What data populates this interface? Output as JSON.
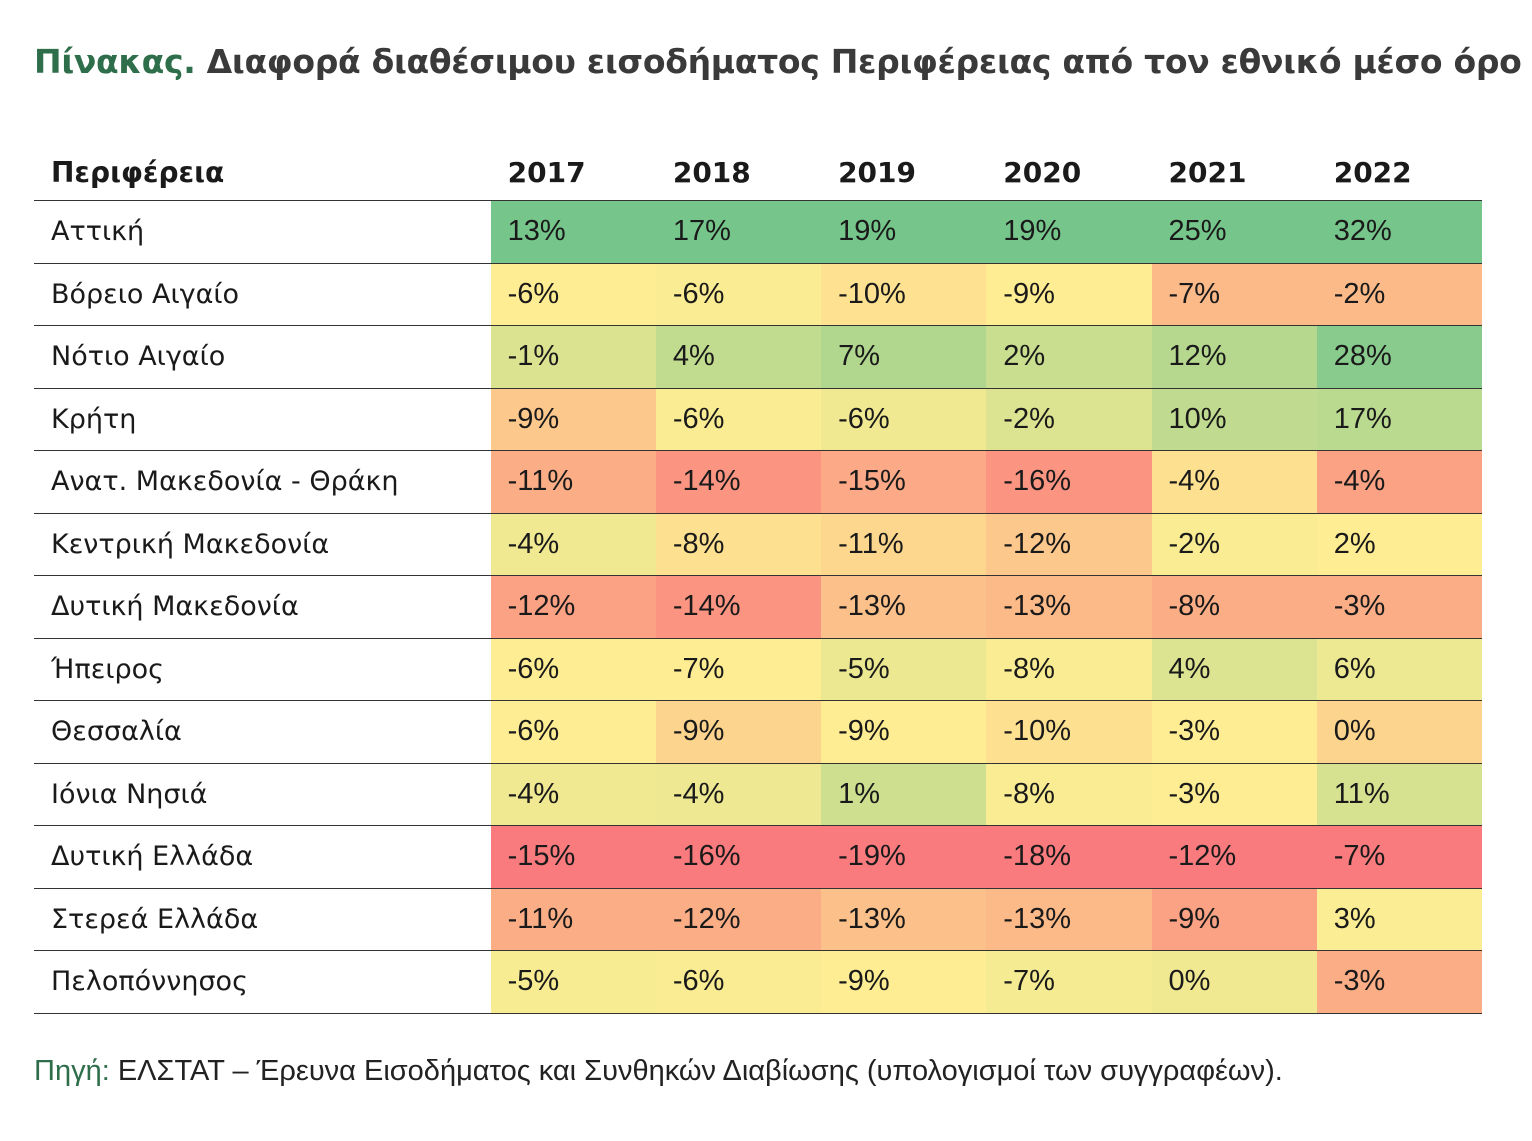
{
  "title": {
    "lead": "Πίνακας.",
    "text": " Διαφορά διαθέσιμου εισοδήματος Περιφέρειας από τον εθνικό μέσο όρο"
  },
  "colors": {
    "accent": "#2f6e4b",
    "low": "#f8696b",
    "mid": "#ffeb84",
    "high": "#63be7b"
  },
  "table": {
    "header_region": "Περιφέρεια",
    "years": [
      "2017",
      "2018",
      "2019",
      "2020",
      "2021",
      "2022"
    ],
    "rows": [
      {
        "region": "Αττική",
        "values": [
          13,
          17,
          19,
          19,
          25,
          32
        ],
        "labels": [
          "13%",
          "17%",
          "19%",
          "19%",
          "25%",
          "32%"
        ]
      },
      {
        "region": "Βόρειο Αιγαίο",
        "values": [
          -6,
          -6,
          -10,
          -9,
          -7,
          -2
        ],
        "labels": [
          "-6%",
          "-6%",
          "-10%",
          "-9%",
          "-7%",
          "-2%"
        ]
      },
      {
        "region": "Νότιο Αιγαίο",
        "values": [
          -1,
          4,
          7,
          2,
          12,
          28
        ],
        "labels": [
          "-1%",
          "4%",
          "7%",
          "2%",
          "12%",
          "28%"
        ]
      },
      {
        "region": "Κρήτη",
        "values": [
          -9,
          -6,
          -6,
          -2,
          10,
          17
        ],
        "labels": [
          "-9%",
          "-6%",
          "-6%",
          "-2%",
          "10%",
          "17%"
        ]
      },
      {
        "region": "Ανατ. Μακεδονία - Θράκη",
        "values": [
          -11,
          -14,
          -15,
          -16,
          -4,
          -4
        ],
        "labels": [
          "-11%",
          "-14%",
          "-15%",
          "-16%",
          "-4%",
          "-4%"
        ]
      },
      {
        "region": "Κεντρική Μακεδονία",
        "values": [
          -4,
          -8,
          -11,
          -12,
          -2,
          2
        ],
        "labels": [
          "-4%",
          "-8%",
          "-11%",
          "-12%",
          "-2%",
          "2%"
        ]
      },
      {
        "region": "Δυτική Μακεδονία",
        "values": [
          -12,
          -14,
          -13,
          -13,
          -8,
          -3
        ],
        "labels": [
          "-12%",
          "-14%",
          "-13%",
          "-13%",
          "-8%",
          "-3%"
        ]
      },
      {
        "region": "Ήπειρος",
        "values": [
          -6,
          -7,
          -5,
          -8,
          4,
          6
        ],
        "labels": [
          "-6%",
          "-7%",
          "-5%",
          "-8%",
          "4%",
          "6%"
        ]
      },
      {
        "region": "Θεσσαλία",
        "values": [
          -6,
          -9,
          -9,
          -10,
          -3,
          0
        ],
        "labels": [
          "-6%",
          "-9%",
          "-9%",
          "-10%",
          "-3%",
          "0%"
        ]
      },
      {
        "region": "Ιόνια Νησιά",
        "values": [
          -4,
          -4,
          1,
          -8,
          -3,
          11
        ],
        "labels": [
          "-4%",
          "-4%",
          "1%",
          "-8%",
          "-3%",
          "11%"
        ]
      },
      {
        "region": "Δυτική Ελλάδα",
        "values": [
          -15,
          -16,
          -19,
          -18,
          -12,
          -7
        ],
        "labels": [
          "-15%",
          "-16%",
          "-19%",
          "-18%",
          "-12%",
          "-7%"
        ]
      },
      {
        "region": "Στερεά Ελλάδα",
        "values": [
          -11,
          -12,
          -13,
          -13,
          -9,
          3
        ],
        "labels": [
          "-11%",
          "-12%",
          "-13%",
          "-13%",
          "-9%",
          "3%"
        ]
      },
      {
        "region": "Πελοπόννησος",
        "values": [
          -5,
          -6,
          -9,
          -7,
          0,
          -3
        ],
        "labels": [
          "-5%",
          "-6%",
          "-9%",
          "-7%",
          "0%",
          "-3%"
        ]
      }
    ]
  },
  "footer": {
    "lead": "Πηγή:",
    "text": " ΕΛΣΤΑΤ – Έρευνα Εισοδήματος και Συνθηκών Διαβίωσης (υπολογισμοί των συγγραφέων)."
  }
}
